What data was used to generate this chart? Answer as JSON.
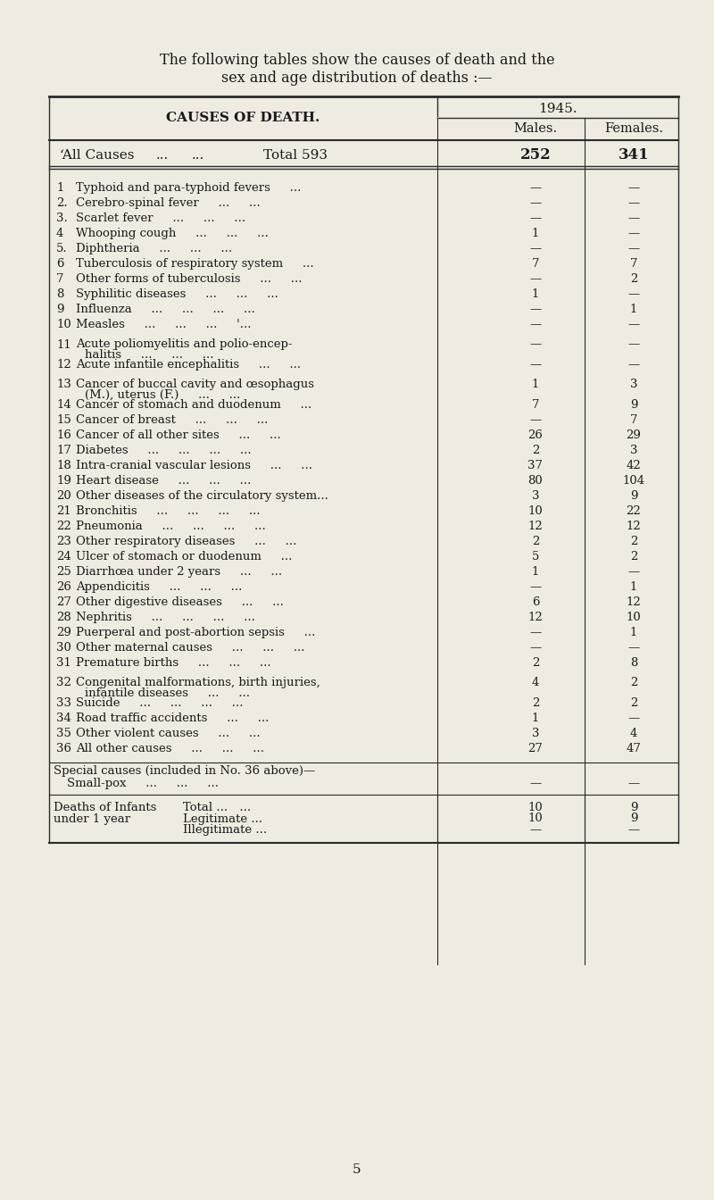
{
  "title_line1": "The following tables show the causes of death and the",
  "title_line2": "sex and age distribution of deaths :—",
  "year": "1945.",
  "col_males": "Males.",
  "col_females": "Females.",
  "header_causes": "CAUSES OF DEATH.",
  "all_causes_label": "ʻAll Causes     Total 593",
  "all_causes_males": "252",
  "all_causes_females": "341",
  "rows": [
    {
      "num": "1",
      "cause": "Typhoid and para-typhoid fevers   ...",
      "males": "—",
      "females": "—"
    },
    {
      "num": "2.",
      "cause": "Cerebro-spinal fever   ...   ...",
      "males": "—",
      "females": "—"
    },
    {
      "num": "3.",
      "cause": "Scarlet fever   ...   ...   ...",
      "males": "—",
      "females": "—"
    },
    {
      "num": "4",
      "cause": "Whooping cough   ...   ...   ...",
      "males": "1",
      "females": "—"
    },
    {
      "num": "5.",
      "cause": "Diphtheria   ...   ...   ...",
      "males": "—",
      "females": "—"
    },
    {
      "num": "6",
      "cause": "Tuberculosis of respiratory system   ...",
      "males": "7",
      "females": "7"
    },
    {
      "num": "7",
      "cause": "Other forms of tuberculosis   ...   ...",
      "males": "—",
      "females": "2"
    },
    {
      "num": "8",
      "cause": "Syphilitic diseases   ...   ...   ...",
      "males": "1",
      "females": "—"
    },
    {
      "num": "9",
      "cause": "Influenza   ...   ...   ...   ...",
      "males": "—",
      "females": "1"
    },
    {
      "num": "10",
      "cause": "Measles   ...   ...   ...   '...",
      "males": "—",
      "females": "—"
    },
    {
      "num": "11",
      "cause": "Acute poliomyelitis and polio-encep-\n      halitis   ...   ...   ...",
      "males": "—",
      "females": "—"
    },
    {
      "num": "12",
      "cause": "Acute infantile encephalitis   ...   ...",
      "males": "—",
      "females": "—"
    },
    {
      "num": "13",
      "cause": "Cancer of buccal cavity and œsophagus\n      (M.), uterus (F.)   ...   ...",
      "males": "1",
      "females": "3"
    },
    {
      "num": "14",
      "cause": "Cancer of stomach and duodenum   ...",
      "males": "7",
      "females": "9"
    },
    {
      "num": "15",
      "cause": "Cancer of breast   ...   ...   ...",
      "males": "—",
      "females": "7"
    },
    {
      "num": "16",
      "cause": "Cancer of all other sites   ...   ...",
      "males": "26",
      "females": "29"
    },
    {
      "num": "17",
      "cause": "Diabetes   ...   ...   ...   ...",
      "males": "2",
      "females": "3"
    },
    {
      "num": "18",
      "cause": "Intra-cranial vascular lesions   ...   ...",
      "males": "37",
      "females": "42"
    },
    {
      "num": "19",
      "cause": "Heart disease   ...   ...   ...",
      "males": "80",
      "females": "104"
    },
    {
      "num": "20",
      "cause": "Other diseases of the circulatory system...",
      "males": "3",
      "females": "9"
    },
    {
      "num": "21",
      "cause": "Bronchitis   ...   ...   ...   ...",
      "males": "10",
      "females": "22"
    },
    {
      "num": "22",
      "cause": "Pneumonia   ...   ...   ...   ...",
      "males": "12",
      "females": "12"
    },
    {
      "num": "23",
      "cause": "Other respiratory diseases   ...   ...",
      "males": "2",
      "females": "2"
    },
    {
      "num": "24",
      "cause": "Ulcer of stomach or duodenum   ...",
      "males": "5",
      "females": "2"
    },
    {
      "num": "25",
      "cause": "Diarrhœa under 2 years   ...   ...",
      "males": "1",
      "females": "—"
    },
    {
      "num": "26",
      "cause": "Appendicitis   ...   ...   ...",
      "males": "—",
      "females": "1"
    },
    {
      "num": "27",
      "cause": "Other digestive diseases   ...   ...",
      "males": "6",
      "females": "12"
    },
    {
      "num": "28",
      "cause": "Nephritis   ...   ...   ...   ...",
      "males": "12",
      "females": "10"
    },
    {
      "num": "29",
      "cause": "Puerperal and post-abortion sepsis   ...",
      "males": "—",
      "females": "1"
    },
    {
      "num": "30",
      "cause": "Other maternal causes   ...   ...   ...",
      "males": "—",
      "females": "—"
    },
    {
      "num": "31",
      "cause": "Premature births   ...   ...   ...",
      "males": "2",
      "females": "8"
    },
    {
      "num": "32",
      "cause": "Congenital malformations, birth injuries,\n      infantile diseases   ...   ...",
      "males": "4",
      "females": "2"
    },
    {
      "num": "33",
      "cause": "Suicide   ...   ...   ...   ...",
      "males": "2",
      "females": "2"
    },
    {
      "num": "34",
      "cause": "Road traffic accidents   ...   ...",
      "males": "1",
      "females": "—"
    },
    {
      "num": "35",
      "cause": "Other violent causes   ...   ...",
      "males": "3",
      "females": "4"
    },
    {
      "num": "36",
      "cause": "All other causes   ...   ...   ...",
      "males": "27",
      "females": "47"
    }
  ],
  "special_label": "Special causes (included in No. 36 above)—",
  "smallpox_label": "Small-pox   ...   ...   ...",
  "smallpox_males": "—",
  "smallpox_females": "—",
  "infants_label": "Deaths of Infants",
  "infants_sublabel": "under 1 year",
  "infants_total_label": "Total ... ...",
  "infants_legit_label": "Legitimate ...",
  "infants_illegit_label": "Illegitimate ...",
  "infants_total_males": "10",
  "infants_total_females": "9",
  "infants_legit_males": "10",
  "infants_legit_females": "9",
  "infants_illegit_males": "—",
  "infants_illegit_females": "—",
  "page_number": "5",
  "bg_color": "#f0ebe0",
  "text_color": "#1a1a1a",
  "line_color": "#2a2a2a"
}
